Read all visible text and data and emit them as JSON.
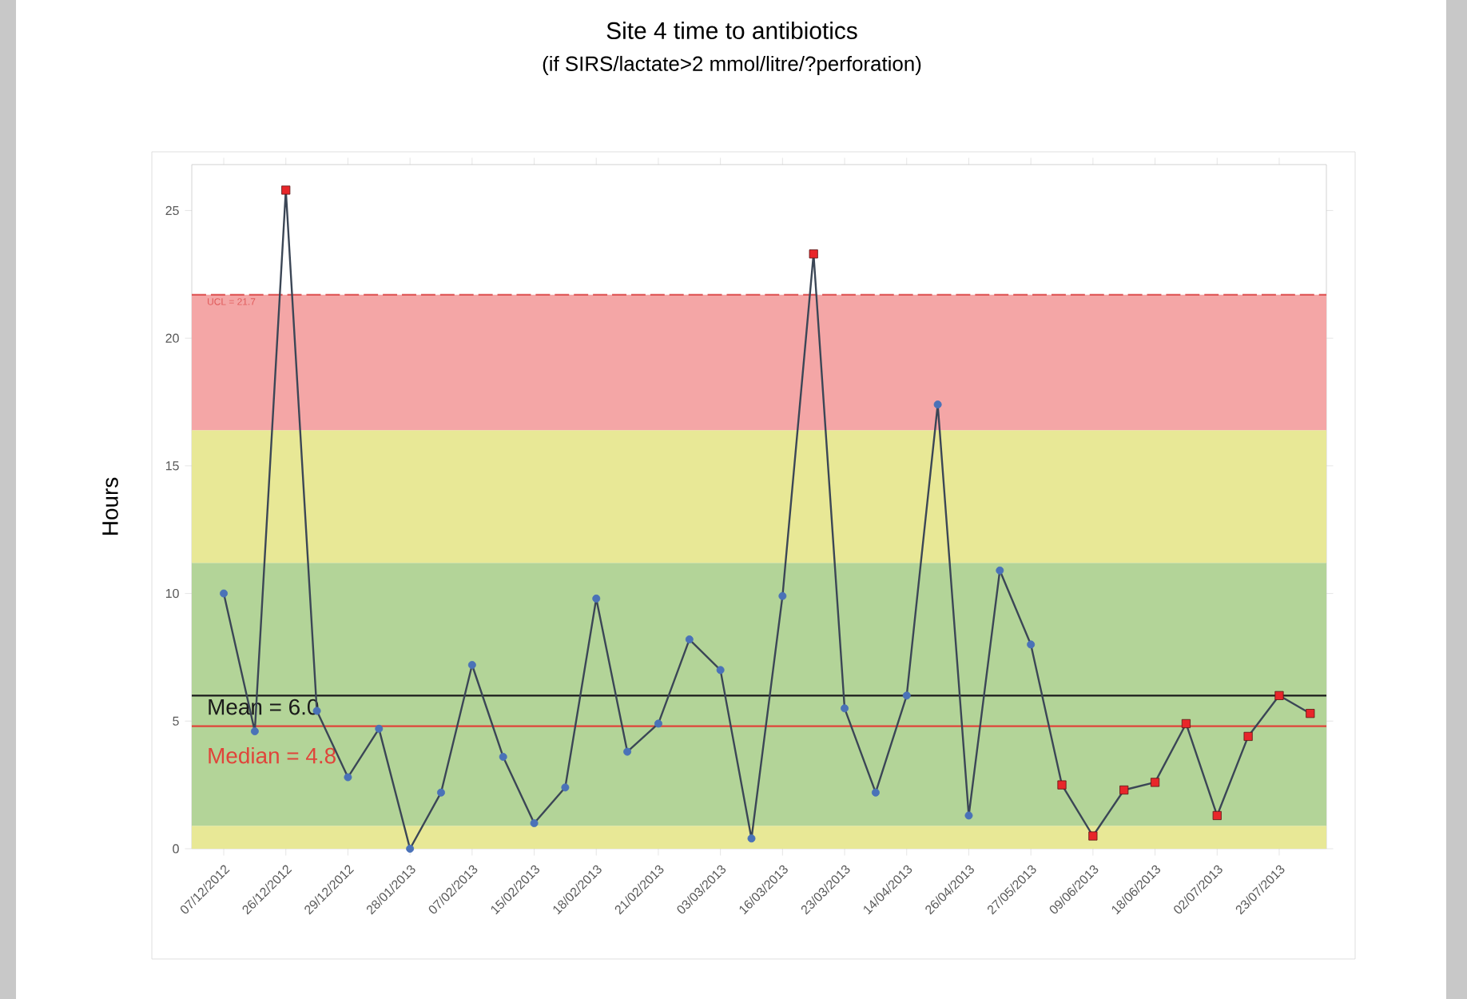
{
  "chart_data": {
    "type": "line",
    "title": "Site 4 time to antibiotics",
    "subtitle": "(if SIRS/lactate>2 mmol/litre/?perforation)",
    "ylabel": "Hours",
    "categories": [
      "07/12/2012",
      null,
      "26/12/2012",
      null,
      "29/12/2012",
      null,
      "28/01/2013",
      null,
      "07/02/2013",
      null,
      "15/02/2013",
      null,
      "18/02/2013",
      null,
      "21/02/2013",
      null,
      "03/03/2013",
      null,
      "16/03/2013",
      null,
      "23/03/2013",
      null,
      "14/04/2013",
      null,
      "26/04/2013",
      null,
      "27/05/2013",
      null,
      "09/06/2013",
      null,
      "18/06/2013",
      null,
      "02/07/2013",
      null,
      "23/07/2013",
      null
    ],
    "series": [
      {
        "marker": "none",
        "color": "#3b4656",
        "values": [
          10.0,
          4.6,
          25.8,
          5.4,
          2.8,
          4.7,
          0.0,
          2.2,
          7.2,
          3.6,
          1.0,
          2.4,
          9.8,
          3.8,
          4.9,
          8.2,
          7.0,
          0.4,
          9.9,
          23.3,
          5.5,
          2.2,
          6.0,
          17.4,
          1.3,
          10.9,
          8.0,
          2.5,
          0.5,
          2.3,
          2.6,
          4.9,
          1.3,
          4.4,
          6.0,
          5.3
        ]
      },
      {
        "type": "scatter",
        "marker": "circle",
        "color": "#4a72b8",
        "values": [
          10.0,
          4.6,
          null,
          5.4,
          2.8,
          4.7,
          0.0,
          2.2,
          7.2,
          3.6,
          1.0,
          2.4,
          9.8,
          3.8,
          4.9,
          8.2,
          7.0,
          0.4,
          9.9,
          null,
          5.5,
          2.2,
          6.0,
          17.4,
          1.3,
          10.9,
          8.0,
          null,
          null,
          null,
          null,
          null,
          null,
          null,
          null,
          null
        ]
      },
      {
        "type": "scatter",
        "marker": "square",
        "color": "#e8262a",
        "values": [
          null,
          null,
          25.8,
          null,
          null,
          null,
          null,
          null,
          null,
          null,
          null,
          null,
          null,
          null,
          null,
          null,
          null,
          null,
          null,
          23.3,
          null,
          null,
          null,
          null,
          null,
          null,
          null,
          2.5,
          0.5,
          2.3,
          2.6,
          4.9,
          1.3,
          4.4,
          6.0,
          5.3
        ]
      }
    ],
    "ylim": [
      0,
      26.8
    ],
    "yticks": [
      0,
      5,
      10,
      15,
      20,
      25
    ],
    "bands": [
      {
        "axis": "y",
        "from": 0,
        "to": 0.9,
        "color": "#e8e896"
      },
      {
        "axis": "y",
        "from": 0.9,
        "to": 11.2,
        "color": "#b3d498"
      },
      {
        "axis": "y",
        "from": 11.2,
        "to": 16.4,
        "color": "#e8e896"
      },
      {
        "axis": "y",
        "from": 16.4,
        "to": 21.7,
        "color": "#f4a6a6"
      }
    ],
    "ref_lines": [
      {
        "axis": "y",
        "value": 21.7,
        "label": "UCL = 21.7",
        "color": "#e05a5a",
        "line_style": "dashed"
      },
      {
        "axis": "y",
        "value": 6.0,
        "label": "Mean = 6.0",
        "color": "#1a1a1a",
        "line_style": "solid"
      },
      {
        "axis": "y",
        "value": 4.8,
        "label": "Median = 4.8",
        "color": "#e0443a",
        "line_style": "solid"
      }
    ]
  }
}
